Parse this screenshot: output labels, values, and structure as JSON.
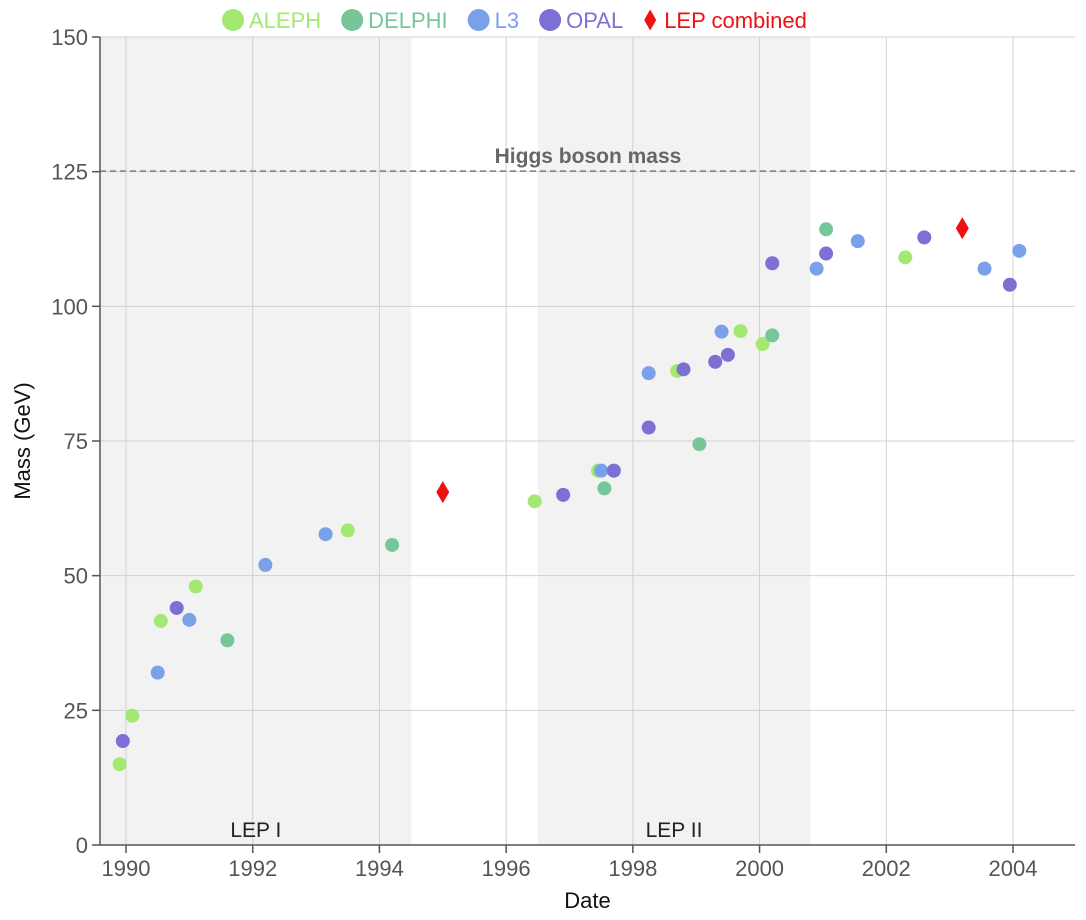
{
  "chart_data": {
    "type": "scatter",
    "xlabel": "Date",
    "ylabel": "Mass (GeV)",
    "xlim": [
      1989.6,
      2004.95
    ],
    "ylim": [
      0,
      150
    ],
    "x_ticks": [
      1990,
      1992,
      1994,
      1996,
      1998,
      2000,
      2002,
      2004
    ],
    "y_ticks": [
      0,
      25,
      50,
      75,
      100,
      125,
      150
    ],
    "grid": true,
    "legend_placement": "top",
    "reference_line": {
      "label": "Higgs boson mass",
      "y": 125.1
    },
    "periods": [
      {
        "label": "LEP I",
        "start": 1989.6,
        "end": 1994.5
      },
      {
        "label": "LEP II",
        "start": 1996.5,
        "end": 2000.8
      }
    ],
    "series": [
      {
        "name": "ALEPH",
        "color": "#a3e870",
        "marker": "circle",
        "points": [
          [
            1989.9,
            15
          ],
          [
            1990.1,
            24
          ],
          [
            1990.55,
            41.6
          ],
          [
            1991.1,
            48
          ],
          [
            1993.5,
            58.4
          ],
          [
            1996.45,
            63.8
          ],
          [
            1997.45,
            69.5
          ],
          [
            1998.7,
            88
          ],
          [
            1999.7,
            95.4
          ],
          [
            2000.05,
            93
          ],
          [
            2002.3,
            109.1
          ]
        ]
      },
      {
        "name": "DELPHI",
        "color": "#77c699",
        "marker": "circle",
        "points": [
          [
            1991.6,
            38
          ],
          [
            1994.2,
            55.7
          ],
          [
            1997.55,
            66.2
          ],
          [
            1999.05,
            74.4
          ],
          [
            2000.2,
            94.6
          ],
          [
            2001.05,
            114.3
          ]
        ]
      },
      {
        "name": "L3",
        "color": "#7ba0ea",
        "marker": "circle",
        "points": [
          [
            1990.5,
            32
          ],
          [
            1991.0,
            41.8
          ],
          [
            1992.2,
            52
          ],
          [
            1993.15,
            57.7
          ],
          [
            1997.5,
            69.5
          ],
          [
            1998.25,
            87.6
          ],
          [
            1999.4,
            95.3
          ],
          [
            2000.9,
            107
          ],
          [
            2001.55,
            112.1
          ],
          [
            2003.55,
            107
          ],
          [
            2004.1,
            110.3
          ]
        ]
      },
      {
        "name": "OPAL",
        "color": "#7c70d4",
        "marker": "circle",
        "points": [
          [
            1989.95,
            19.3
          ],
          [
            1990.8,
            44
          ],
          [
            1996.9,
            65
          ],
          [
            1997.7,
            69.5
          ],
          [
            1998.25,
            77.5
          ],
          [
            1998.8,
            88.3
          ],
          [
            1999.3,
            89.7
          ],
          [
            1999.5,
            91
          ],
          [
            2000.2,
            108
          ],
          [
            2001.05,
            109.8
          ],
          [
            2002.6,
            112.8
          ],
          [
            2003.95,
            104
          ]
        ]
      },
      {
        "name": "LEP combined",
        "color": "#ee1111",
        "marker": "diamond",
        "points": [
          [
            1995.0,
            65.5
          ],
          [
            2003.2,
            114.5
          ]
        ]
      }
    ]
  }
}
